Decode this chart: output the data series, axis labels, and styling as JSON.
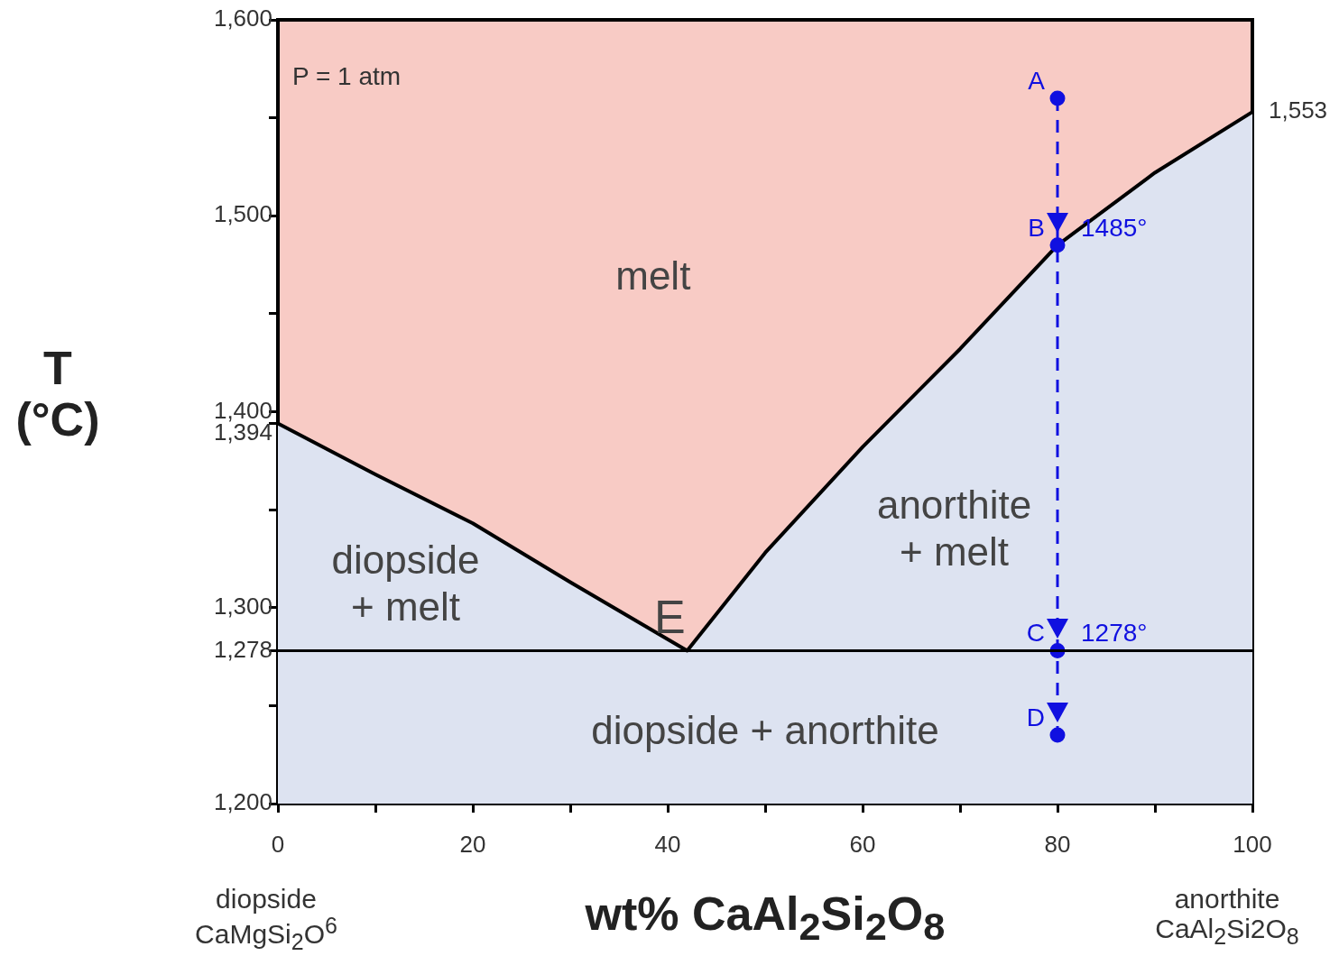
{
  "chart_data": {
    "type": "line",
    "xlabel": "wt% CaAl$_{2}$Si$_{2}$O$_{8}$",
    "ylabel": "T\n(°C)",
    "xlim": [
      0,
      100
    ],
    "xticks": [
      0,
      {
        "value": 10,
        "label": null
      },
      20,
      {
        "value": 30,
        "label": null
      },
      40,
      {
        "value": 50,
        "label": null
      },
      60,
      {
        "value": 70,
        "label": null
      },
      80,
      {
        "value": 90,
        "label": null
      },
      100
    ],
    "ylim": [
      1200,
      1600
    ],
    "yticks": [
      {
        "value": 1200,
        "label": "1,200"
      },
      {
        "value": 1250,
        "label": null
      },
      {
        "value": 1278,
        "label": "1,278"
      },
      {
        "value": 1300,
        "label": "1,300"
      },
      {
        "value": 1350,
        "label": null
      },
      {
        "value": 1394,
        "label": "1,394"
      },
      {
        "value": 1400,
        "label": "1,400"
      },
      {
        "value": 1450,
        "label": null
      },
      {
        "value": 1500,
        "label": "1,500"
      },
      {
        "value": 1550,
        "label": null
      },
      {
        "value": 1600,
        "label": "1,600"
      }
    ],
    "grid": false,
    "legend": false,
    "bands": [
      {
        "axis": "y",
        "from": 1200,
        "to": 1600,
        "color": "#f8cbc5"
      }
    ],
    "ref_lines": [
      {
        "axis": "y",
        "value": 1278,
        "color": "#000000"
      }
    ],
    "series": [
      {
        "type": "area",
        "color": "#dde3f1",
        "x": [
          0,
          10,
          20,
          30,
          42,
          50,
          60,
          70,
          80,
          90,
          100
        ],
        "values": [
          1394,
          1368,
          1343,
          1313,
          1278,
          1328,
          1382,
          1432,
          1485,
          1522,
          1553
        ]
      },
      {
        "type": "line",
        "color": "#1010e0",
        "x": [
          80,
          80,
          80,
          80
        ],
        "values": [
          1560,
          1485,
          1278,
          1235
        ],
        "line_style": "dashed",
        "marker": "circle",
        "value_labels": [
          null,
          "1485°",
          "1278°",
          null
        ]
      }
    ],
    "annotations": [
      "P = 1 atm",
      "diopside\nCaMgSi$_{2}$O$^{6}$",
      "anorthite\nCaAl$_{2}$Si2O$_{8}$",
      "melt",
      "diopside\n+ melt",
      "anorthite\n+ melt",
      "diopside + anorthite",
      {
        "text": "1,553",
        "x": 100,
        "y": 1553
      },
      {
        "text": "E",
        "x": 42,
        "y": 1278
      },
      {
        "text": "A",
        "x": 80,
        "y": 1560
      },
      {
        "text": "B",
        "x": 80,
        "y": 1485
      },
      {
        "text": "C",
        "x": 80,
        "y": 1278
      },
      {
        "text": "D",
        "x": 80,
        "y": 1235
      }
    ]
  }
}
